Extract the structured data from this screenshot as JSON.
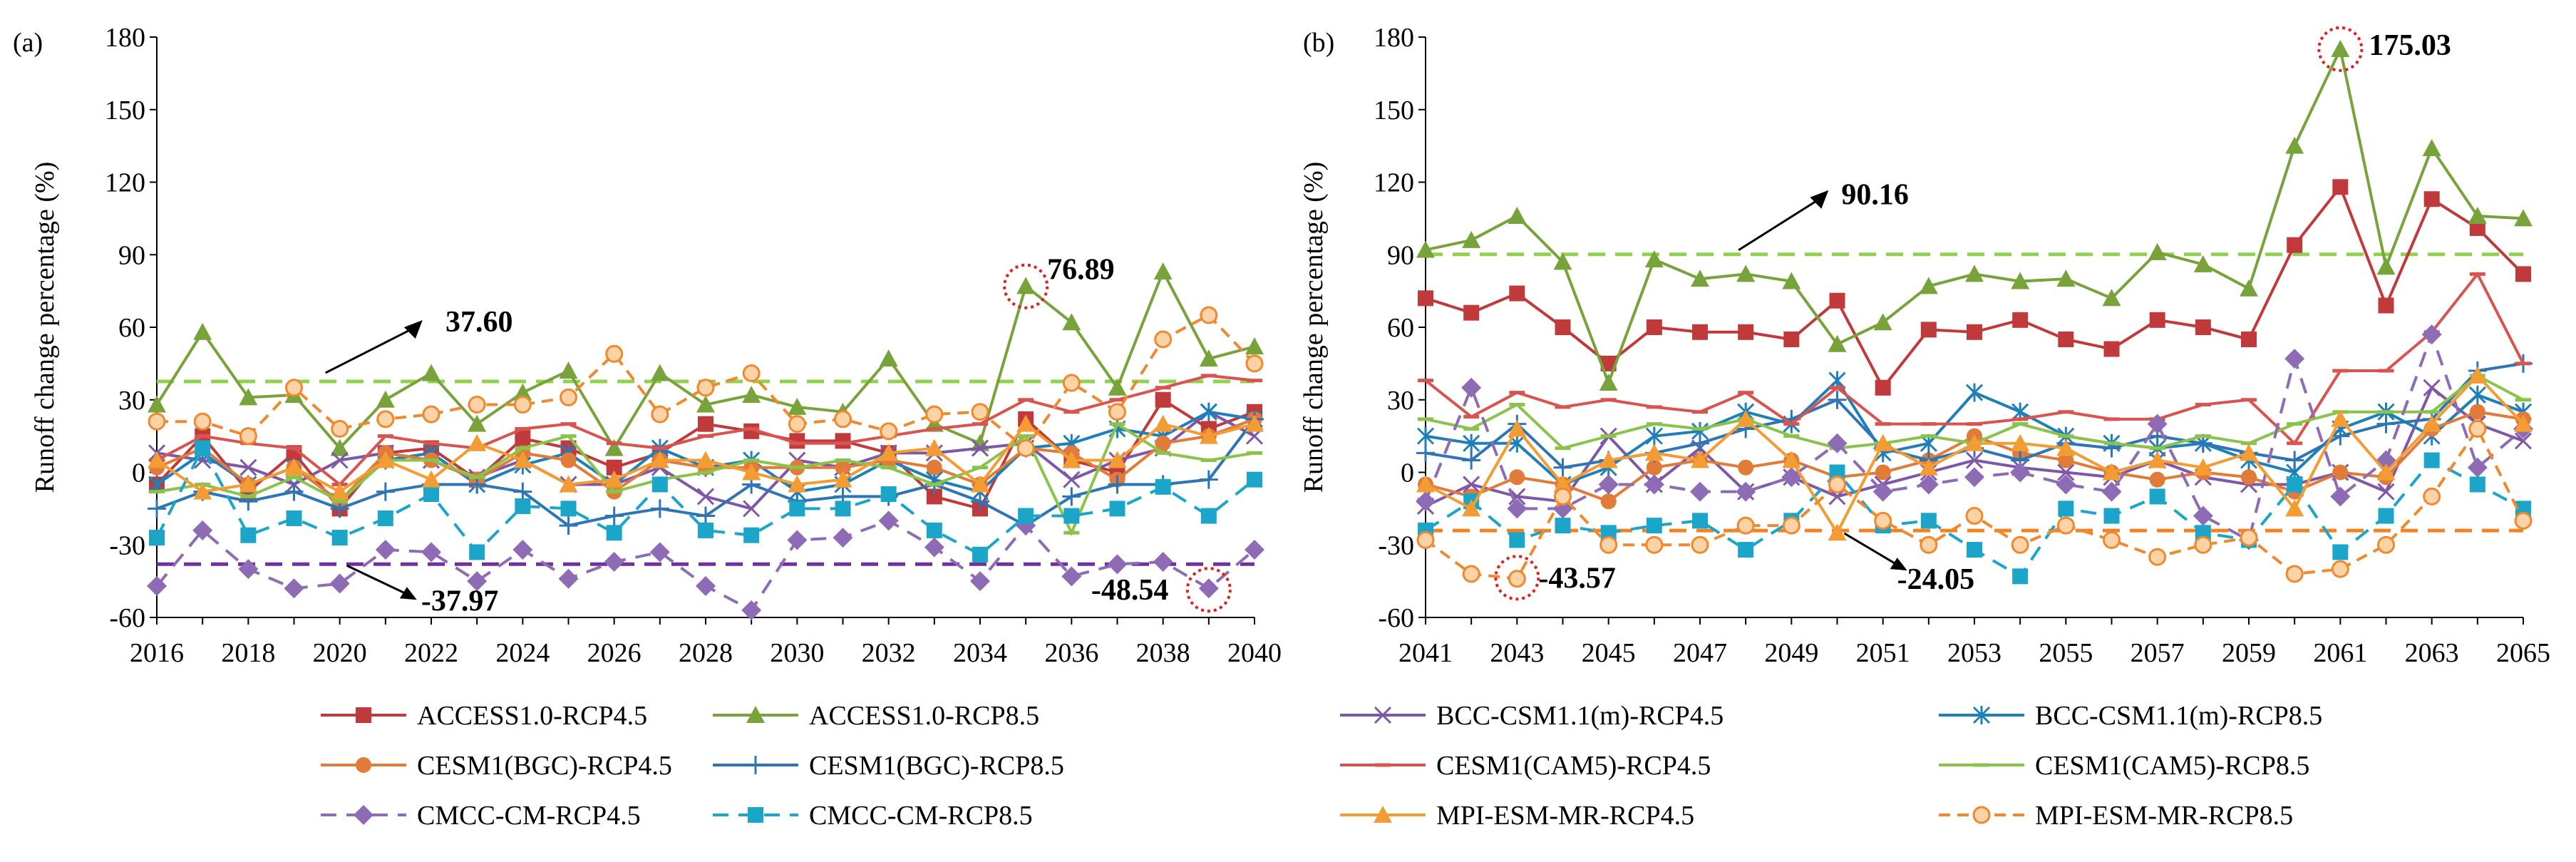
{
  "chart_data": [
    {
      "panel_label": "(a)",
      "type": "line",
      "ylabel": "Runoff change percentage  (%)",
      "ylim": [
        -60,
        180
      ],
      "yticks": [
        -60,
        -30,
        0,
        30,
        60,
        90,
        120,
        150,
        180
      ],
      "x": [
        2016,
        2017,
        2018,
        2019,
        2020,
        2021,
        2022,
        2023,
        2024,
        2025,
        2026,
        2027,
        2028,
        2029,
        2030,
        2031,
        2032,
        2033,
        2034,
        2035,
        2036,
        2037,
        2038,
        2039,
        2040
      ],
      "xtick_labels": [
        "2016",
        "2018",
        "2020",
        "2022",
        "2024",
        "2026",
        "2028",
        "2030",
        "2032",
        "2034",
        "2036",
        "2038",
        "2040"
      ],
      "reference_lines": [
        {
          "value": 37.6,
          "label": "37.60",
          "color": "#92D050"
        },
        {
          "value": -37.97,
          "label": "-37.97",
          "color": "#7030A0"
        }
      ],
      "annotations": [
        {
          "label": "76.89",
          "x": 2035,
          "y": 76.89
        },
        {
          "label": "-48.54",
          "x": 2039,
          "y": -48.54
        }
      ],
      "series": [
        {
          "name": "ACCESS1.0-RCP4.5",
          "values": [
            -5,
            15,
            -8,
            8,
            -15,
            8,
            10,
            -3,
            14,
            10,
            2,
            8,
            20,
            17,
            13,
            13,
            8,
            -10,
            -15,
            22,
            5,
            0,
            30,
            18,
            25
          ]
        },
        {
          "name": "ACCESS1.0-RCP8.5",
          "values": [
            28,
            58,
            31,
            32,
            10,
            30,
            41,
            20,
            33,
            42,
            10,
            41,
            28,
            32,
            27,
            25,
            47,
            20,
            12,
            77,
            62,
            35,
            83,
            47,
            52
          ]
        },
        {
          "name": "BCC-CSM1.1(m)-RCP4.5",
          "values": [
            8,
            5,
            2,
            -5,
            5,
            8,
            5,
            -2,
            5,
            -5,
            -5,
            2,
            -10,
            -15,
            5,
            2,
            8,
            8,
            10,
            12,
            -3,
            5,
            10,
            25,
            15
          ]
        },
        {
          "name": "BCC-CSM1.1(m)-RCP8.5",
          "values": [
            -5,
            8,
            -5,
            2,
            -12,
            5,
            8,
            -5,
            3,
            8,
            -5,
            10,
            2,
            5,
            -8,
            -5,
            5,
            -3,
            -8,
            10,
            12,
            18,
            15,
            25,
            22
          ]
        },
        {
          "name": "CESM1(BGC)-RCP4.5",
          "values": [
            2,
            10,
            -5,
            2,
            -12,
            8,
            5,
            -3,
            8,
            5,
            -8,
            5,
            2,
            2,
            2,
            2,
            5,
            2,
            -5,
            10,
            8,
            -3,
            12,
            15,
            22
          ]
        },
        {
          "name": "CESM1(BGC)-RCP8.5",
          "values": [
            -15,
            -8,
            -12,
            -8,
            -15,
            -8,
            -5,
            -5,
            -8,
            -22,
            -18,
            -15,
            -18,
            -5,
            -12,
            -10,
            -10,
            -5,
            -12,
            -22,
            -10,
            -5,
            -5,
            -3,
            22
          ]
        },
        {
          "name": "CESM1(CAM5)-RCP4.5",
          "values": [
            5,
            15,
            12,
            10,
            -5,
            15,
            12,
            10,
            18,
            20,
            12,
            10,
            15,
            18,
            12,
            12,
            15,
            18,
            20,
            30,
            25,
            30,
            35,
            40,
            38
          ]
        },
        {
          "name": "CESM1(CAM5)-RCP8.5",
          "values": [
            -8,
            -5,
            -10,
            -2,
            -12,
            5,
            5,
            -2,
            10,
            15,
            -8,
            -3,
            0,
            5,
            2,
            5,
            2,
            -5,
            2,
            15,
            -25,
            20,
            8,
            5,
            8
          ]
        },
        {
          "name": "CMCC-CM-RCP4.5",
          "values": [
            -47,
            -24,
            -40,
            -48,
            -46,
            -32,
            -33,
            -45,
            -32,
            -44,
            -37,
            -33,
            -47,
            -57,
            -28,
            -27,
            -20,
            -31,
            -45,
            -22,
            -43,
            -38,
            -37,
            -48,
            -32
          ]
        },
        {
          "name": "CMCC-CM-RCP8.5",
          "values": [
            -27,
            10,
            -26,
            -19,
            -27,
            -19,
            -9,
            -33,
            -14,
            -15,
            -25,
            -5,
            -24,
            -26,
            -15,
            -15,
            -9,
            -24,
            -34,
            -18,
            -18,
            -15,
            -6,
            -18,
            -3
          ]
        },
        {
          "name": "MPI-ESM-MR-RCP4.5",
          "values": [
            5,
            -8,
            -5,
            2,
            -8,
            5,
            -3,
            12,
            5,
            -5,
            -3,
            5,
            5,
            0,
            -5,
            -3,
            8,
            10,
            -5,
            20,
            5,
            5,
            20,
            15,
            20
          ]
        },
        {
          "name": "MPI-ESM-MR-RCP8.5",
          "values": [
            21,
            21,
            15,
            35,
            18,
            22,
            24,
            28,
            28,
            31,
            49,
            24,
            35,
            41,
            20,
            22,
            17,
            24,
            25,
            10,
            37,
            25,
            55,
            65,
            45
          ]
        }
      ]
    },
    {
      "panel_label": "(b)",
      "type": "line",
      "ylabel": "Runoff change percentage  (%)",
      "ylim": [
        -60,
        180
      ],
      "yticks": [
        -60,
        -30,
        0,
        30,
        60,
        90,
        120,
        150,
        180
      ],
      "x": [
        2041,
        2042,
        2043,
        2044,
        2045,
        2046,
        2047,
        2048,
        2049,
        2050,
        2051,
        2052,
        2053,
        2054,
        2055,
        2056,
        2057,
        2058,
        2059,
        2060,
        2061,
        2062,
        2063,
        2064,
        2065
      ],
      "xtick_labels": [
        "2041",
        "2043",
        "2045",
        "2047",
        "2049",
        "2051",
        "2053",
        "2055",
        "2057",
        "2059",
        "2061",
        "2063",
        "2065"
      ],
      "reference_lines": [
        {
          "value": 90.16,
          "label": "90.16",
          "color": "#92D050"
        },
        {
          "value": -24.05,
          "label": "-24.05",
          "color": "#F58220"
        }
      ],
      "annotations": [
        {
          "label": "175.03",
          "x": 2061,
          "y": 175.03
        },
        {
          "label": "-43.57",
          "x": 2043,
          "y": -43.57
        }
      ],
      "series": [
        {
          "name": "ACCESS1.0-RCP4.5",
          "values": [
            72,
            66,
            74,
            60,
            45,
            60,
            58,
            58,
            55,
            71,
            35,
            59,
            58,
            63,
            55,
            51,
            63,
            60,
            55,
            94,
            118,
            69,
            113,
            101,
            82
          ]
        },
        {
          "name": "ACCESS1.0-RCP8.5",
          "values": [
            92,
            96,
            106,
            87,
            37,
            88,
            80,
            82,
            79,
            53,
            62,
            77,
            82,
            79,
            80,
            72,
            91,
            86,
            76,
            135,
            175,
            85,
            134,
            106,
            105
          ]
        },
        {
          "name": "BCC-CSM1.1(m)-RCP4.5",
          "values": [
            -14,
            -5,
            -10,
            -12,
            15,
            -5,
            10,
            -8,
            -2,
            -10,
            -5,
            0,
            5,
            2,
            0,
            -2,
            5,
            -2,
            -5,
            -5,
            0,
            -8,
            35,
            20,
            13
          ]
        },
        {
          "name": "BCC-CSM1.1(m)-RCP8.5",
          "values": [
            15,
            12,
            12,
            -5,
            2,
            15,
            17,
            25,
            20,
            38,
            8,
            12,
            33,
            25,
            15,
            12,
            10,
            12,
            5,
            0,
            18,
            25,
            15,
            32,
            25
          ]
        },
        {
          "name": "CESM1(BGC)-RCP4.5",
          "values": [
            -5,
            -10,
            -2,
            -5,
            -12,
            2,
            5,
            2,
            5,
            -2,
            0,
            5,
            15,
            8,
            5,
            0,
            -3,
            0,
            -2,
            -8,
            0,
            -2,
            18,
            25,
            22
          ]
        },
        {
          "name": "CESM1(BGC)-RCP8.5",
          "values": [
            8,
            5,
            20,
            2,
            5,
            8,
            12,
            18,
            22,
            30,
            10,
            5,
            10,
            5,
            12,
            10,
            15,
            12,
            8,
            5,
            15,
            20,
            22,
            42,
            45
          ]
        },
        {
          "name": "CESM1(CAM5)-RCP4.5",
          "values": [
            38,
            23,
            33,
            27,
            30,
            27,
            25,
            33,
            20,
            35,
            20,
            20,
            20,
            22,
            25,
            22,
            22,
            28,
            30,
            12,
            42,
            42,
            58,
            82,
            45
          ]
        },
        {
          "name": "CESM1(CAM5)-RCP8.5",
          "values": [
            22,
            18,
            28,
            10,
            15,
            20,
            18,
            22,
            15,
            10,
            12,
            15,
            12,
            20,
            15,
            12,
            10,
            15,
            12,
            20,
            25,
            25,
            25,
            40,
            30
          ]
        },
        {
          "name": "CMCC-CM-RCP4.5",
          "values": [
            -12,
            35,
            -15,
            -15,
            -5,
            -5,
            -8,
            -8,
            -2,
            12,
            -8,
            -5,
            -2,
            0,
            -5,
            -8,
            20,
            -18,
            -28,
            47,
            -10,
            5,
            57,
            2,
            18
          ]
        },
        {
          "name": "CMCC-CM-RCP8.5",
          "values": [
            -24,
            -12,
            -28,
            -22,
            -25,
            -22,
            -20,
            -32,
            -20,
            0,
            -22,
            -20,
            -32,
            -43,
            -15,
            -18,
            -10,
            -25,
            -28,
            -5,
            -33,
            -18,
            5,
            -5,
            -15
          ]
        },
        {
          "name": "MPI-ESM-MR-RCP4.5",
          "values": [
            -5,
            -15,
            18,
            -5,
            5,
            8,
            5,
            22,
            5,
            -25,
            12,
            2,
            12,
            12,
            10,
            0,
            5,
            2,
            8,
            -15,
            22,
            0,
            20,
            40,
            20
          ]
        },
        {
          "name": "MPI-ESM-MR-RCP8.5",
          "values": [
            -28,
            -42,
            -44,
            -10,
            -30,
            -30,
            -30,
            -22,
            -22,
            -5,
            -20,
            -30,
            -18,
            -30,
            -22,
            -28,
            -35,
            -30,
            -27,
            -42,
            -40,
            -30,
            -10,
            18,
            -20
          ]
        }
      ]
    }
  ],
  "styles": [
    {
      "color": "#C0393B",
      "marker": "square",
      "dash": ""
    },
    {
      "color": "#77A33A",
      "marker": "triangle",
      "dash": ""
    },
    {
      "color": "#7E57A8",
      "marker": "x",
      "dash": ""
    },
    {
      "color": "#1F7FB8",
      "marker": "star",
      "dash": ""
    },
    {
      "color": "#E07B39",
      "marker": "circle",
      "dash": ""
    },
    {
      "color": "#2E75B6",
      "marker": "plus",
      "dash": ""
    },
    {
      "color": "#D9534F",
      "marker": "dash",
      "dash": ""
    },
    {
      "color": "#8BC34A",
      "marker": "dash",
      "dash": ""
    },
    {
      "color": "#8E6BB5",
      "marker": "diamond",
      "dash": "22,14"
    },
    {
      "color": "#1BA6C9",
      "marker": "square",
      "dash": "22,14"
    },
    {
      "color": "#F39C33",
      "marker": "triangle",
      "dash": ""
    },
    {
      "color": "#F0892D",
      "marker": "circle-open",
      "dash": "16,10"
    }
  ],
  "legend": [
    "ACCESS1.0-RCP4.5",
    "ACCESS1.0-RCP8.5",
    "BCC-CSM1.1(m)-RCP4.5",
    "BCC-CSM1.1(m)-RCP8.5",
    "CESM1(BGC)-RCP4.5",
    "CESM1(BGC)-RCP8.5",
    "CESM1(CAM5)-RCP4.5",
    "CESM1(CAM5)-RCP8.5",
    "CMCC-CM-RCP4.5",
    "CMCC-CM-RCP8.5",
    "MPI-ESM-MR-RCP4.5",
    "MPI-ESM-MR-RCP8.5"
  ]
}
